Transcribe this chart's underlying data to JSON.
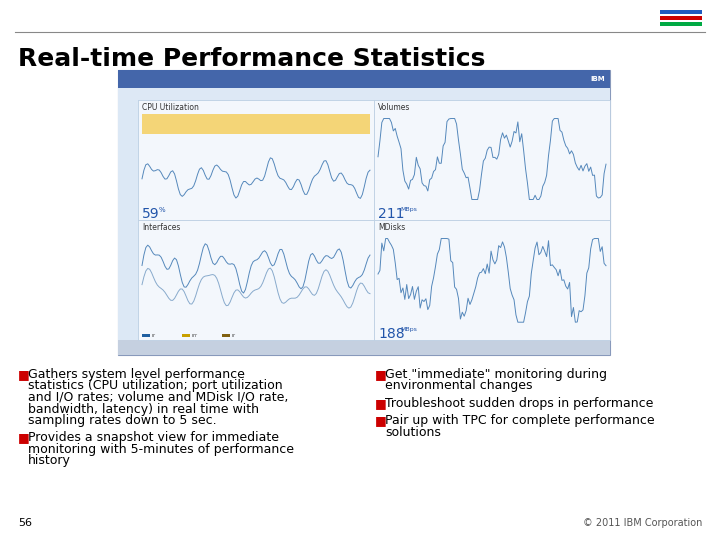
{
  "title": "Real-time Performance Statistics",
  "bg_color": "#ffffff",
  "title_color": "#000000",
  "title_fontsize": 18,
  "slide_number": "56",
  "copyright": "© 2011 IBM Corporation",
  "bullet_color": "#cc0000",
  "bullet_text_color": "#000000",
  "bullet_fontsize": 9,
  "left_bullets": [
    "Gathers system level performance\nstatistics (CPU utilization; port utilization\nand I/O rates; volume and MDisk I/O rate,\nbandwidth, latency) in real time with\nsampling rates down to 5 sec.",
    "Provides a snapshot view for immediate\nmonitoring with 5-minutes of performance\nhistory"
  ],
  "right_bullets": [
    "Get \"immediate\" monitoring during\nenvironmental changes",
    "Troubleshoot sudden drops in performance",
    "Pair up with TPC for complete performance\nsolutions"
  ],
  "panel_labels": [
    "CPU Utilization",
    "Volumes",
    "Interfaces",
    "MDisks"
  ],
  "cpu_value": "59",
  "vol_value": "211",
  "int_value": "",
  "mdk_value": "188"
}
